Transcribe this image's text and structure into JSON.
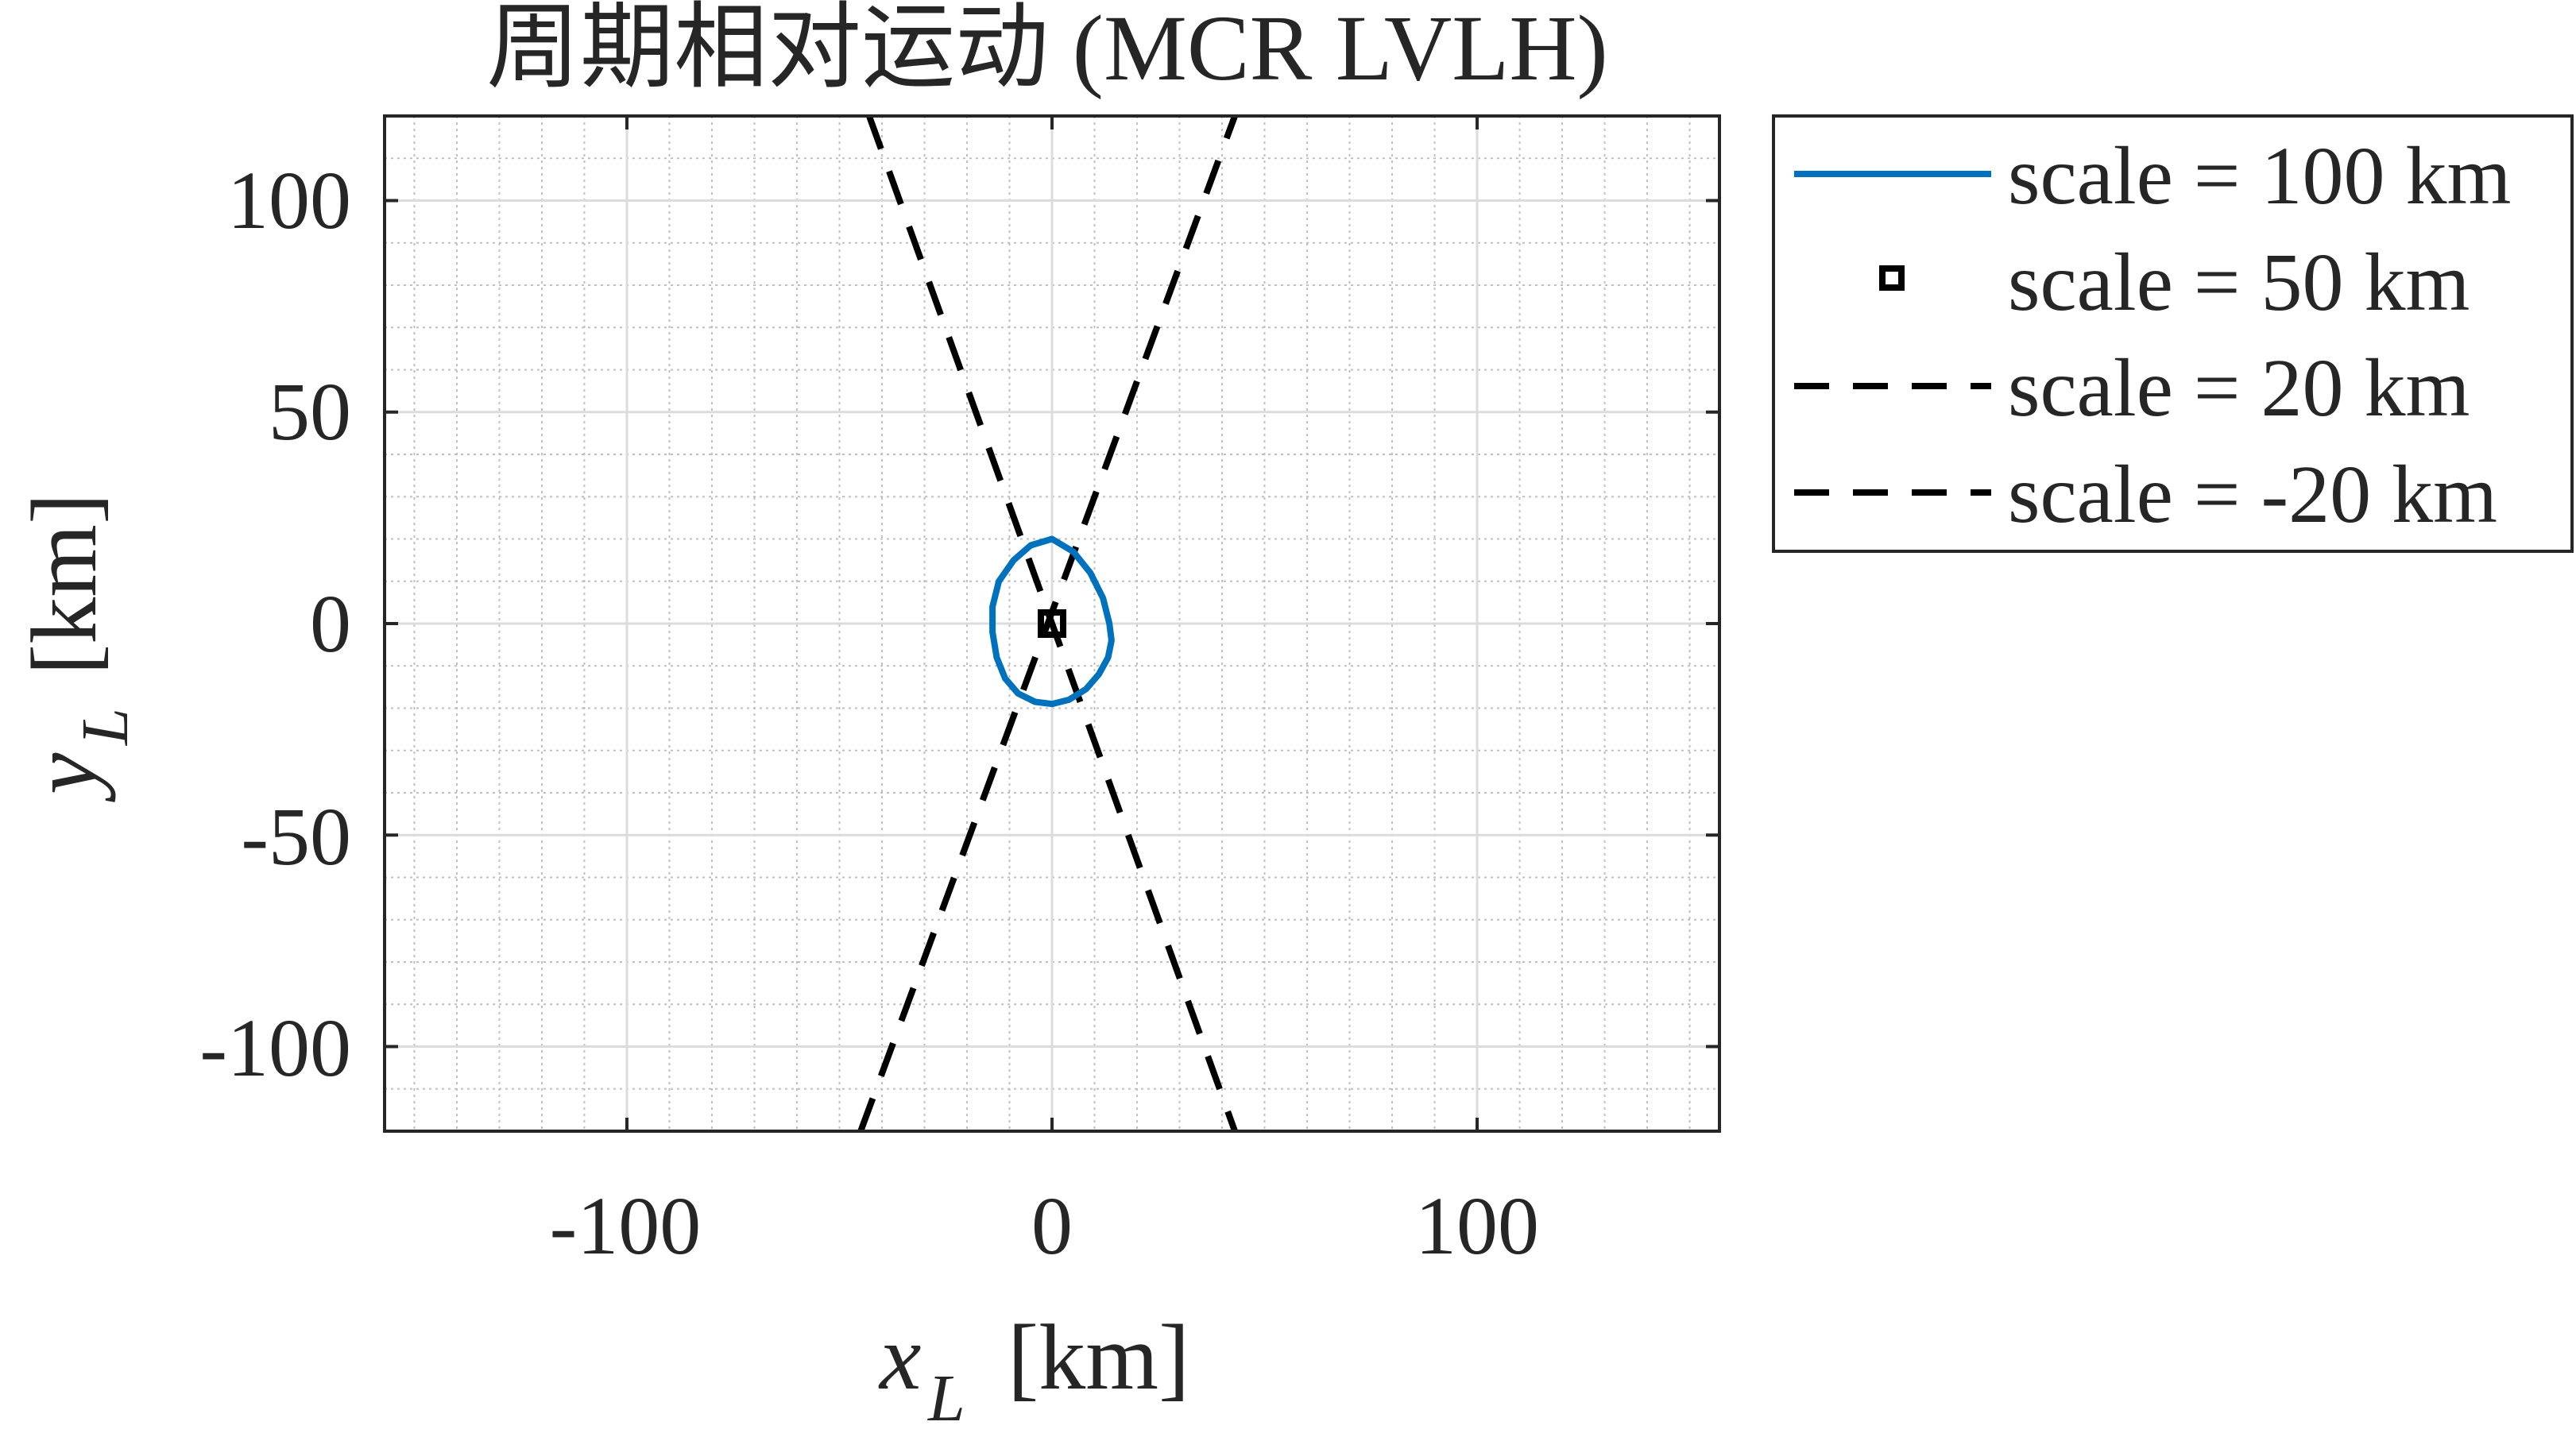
{
  "chart_data": {
    "type": "line",
    "title": "周期相对运动 (MCR LVLH)",
    "xlabel_var": "x",
    "xlabel_sub": "L",
    "xlabel_unit": "[km]",
    "ylabel_var": "y",
    "ylabel_sub": "L",
    "ylabel_unit": "[km]",
    "xlim": [
      -157,
      157
    ],
    "ylim": [
      -120,
      120
    ],
    "xticks": [
      -100,
      0,
      100
    ],
    "yticks": [
      -100,
      -50,
      0,
      50,
      100
    ],
    "xtick_labels": [
      "-100",
      "0",
      "100"
    ],
    "ytick_labels": [
      "-100",
      "-50",
      "0",
      "50",
      "100"
    ],
    "minor_step": 10,
    "grid": true,
    "legend_position": "outside-top-right",
    "colors": {
      "blue": "#0072BD",
      "black": "#000000",
      "axis": "#262626",
      "grid_major": "#dcdcdc",
      "grid_minor": "#bfbfbf"
    },
    "series": [
      {
        "name": "scale = 100 km",
        "style": "solid",
        "color": "#0072BD",
        "x": [
          0,
          5,
          9,
          12,
          13.5,
          14,
          13.2,
          11,
          8,
          4,
          0,
          -4,
          -8,
          -11,
          -13,
          -14,
          -14,
          -12.5,
          -9,
          -5,
          0
        ],
        "y": [
          20,
          17,
          12,
          6,
          0,
          -4,
          -8,
          -12,
          -15.5,
          -18,
          -19,
          -18.5,
          -16.5,
          -13,
          -8,
          -2,
          4,
          10,
          15,
          18.5,
          20
        ]
      },
      {
        "name": "scale = 50 km",
        "style": "square-marker",
        "color": "#000000",
        "x": [
          0
        ],
        "y": [
          0
        ]
      },
      {
        "name": "scale = 20 km",
        "style": "dashed",
        "color": "#000000",
        "x": [
          -43,
          43
        ],
        "y": [
          120,
          -120
        ]
      },
      {
        "name": "scale = -20 km",
        "style": "dashed",
        "color": "#000000",
        "x": [
          -45,
          43
        ],
        "y": [
          -120,
          120
        ]
      }
    ]
  }
}
